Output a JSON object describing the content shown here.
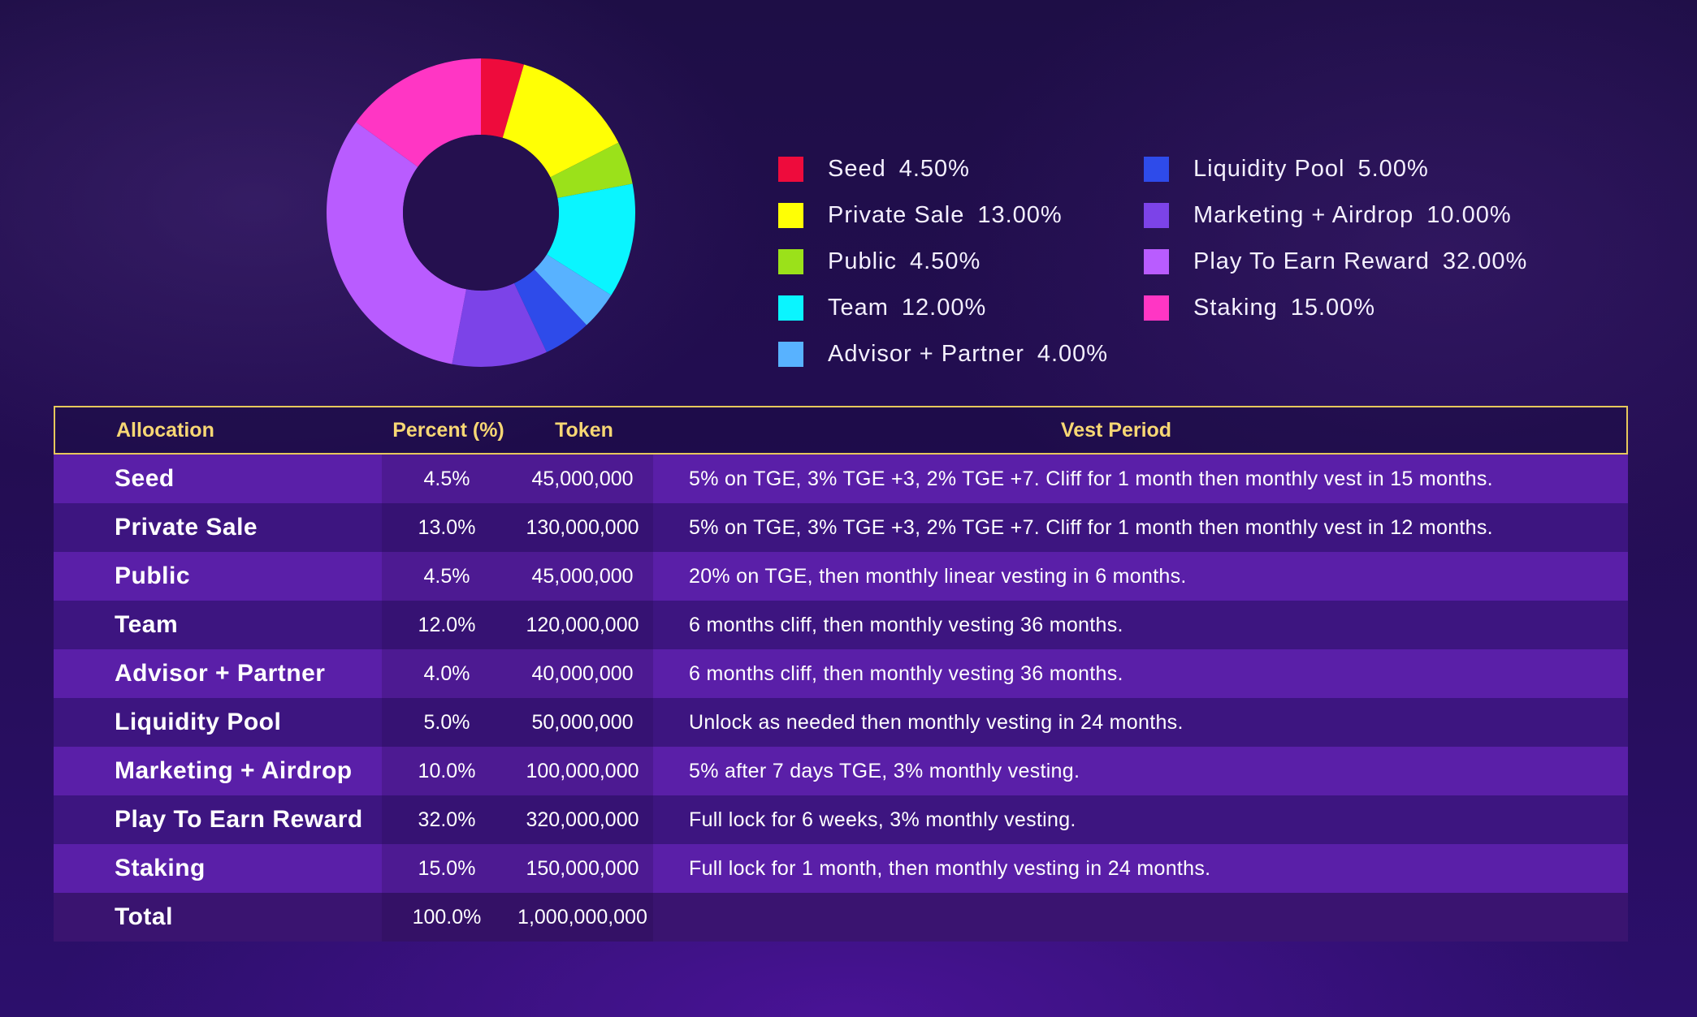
{
  "chart_data": {
    "type": "pie",
    "donut": true,
    "slices": [
      {
        "label": "Seed",
        "legend_pct": "4.50%",
        "value": 4.5,
        "color": "#ee0b3c"
      },
      {
        "label": "Private Sale",
        "legend_pct": "13.00%",
        "value": 13.0,
        "color": "#ffff05"
      },
      {
        "label": "Public",
        "legend_pct": "4.50%",
        "value": 4.5,
        "color": "#9be11a"
      },
      {
        "label": "Team",
        "legend_pct": "12.00%",
        "value": 12.0,
        "color": "#0af5ff"
      },
      {
        "label": "Advisor + Partner",
        "legend_pct": "4.00%",
        "value": 4.0,
        "color": "#58b2ff"
      },
      {
        "label": "Liquidity Pool",
        "legend_pct": "5.00%",
        "value": 5.0,
        "color": "#2e4bea"
      },
      {
        "label": "Marketing + Airdrop",
        "legend_pct": "10.00%",
        "value": 10.0,
        "color": "#7c43e8"
      },
      {
        "label": "Play To Earn Reward",
        "legend_pct": "32.00%",
        "value": 32.0,
        "color": "#b95cff"
      },
      {
        "label": "Staking",
        "legend_pct": "15.00%",
        "value": 15.0,
        "color": "#ff36c4"
      }
    ],
    "legend": {
      "col1": [
        0,
        1,
        2,
        3,
        4
      ],
      "col2": [
        5,
        6,
        7,
        8
      ]
    }
  },
  "table": {
    "headers": {
      "allocation": "Allocation",
      "percent": "Percent (%)",
      "token": "Token",
      "vest": "Vest Period"
    },
    "rows": [
      {
        "allocation": "Seed",
        "percent": "4.5%",
        "token": "45,000,000",
        "vest": "5% on TGE, 3% TGE +3, 2% TGE +7. Cliff for 1 month then monthly vest in 15 months."
      },
      {
        "allocation": "Private Sale",
        "percent": "13.0%",
        "token": "130,000,000",
        "vest": "5% on TGE, 3% TGE +3, 2% TGE +7. Cliff for 1 month then monthly vest in 12 months."
      },
      {
        "allocation": "Public",
        "percent": "4.5%",
        "token": "45,000,000",
        "vest": "20% on TGE, then monthly linear vesting in 6 months."
      },
      {
        "allocation": "Team",
        "percent": "12.0%",
        "token": "120,000,000",
        "vest": "6 months cliff, then monthly vesting 36 months."
      },
      {
        "allocation": "Advisor + Partner",
        "percent": "4.0%",
        "token": "40,000,000",
        "vest": "6 months cliff, then monthly vesting 36 months."
      },
      {
        "allocation": "Liquidity Pool",
        "percent": "5.0%",
        "token": "50,000,000",
        "vest": "Unlock as needed then monthly vesting  in 24 months."
      },
      {
        "allocation": "Marketing + Airdrop",
        "percent": "10.0%",
        "token": "100,000,000",
        "vest": "5% after 7 days TGE, 3% monthly vesting."
      },
      {
        "allocation": "Play To Earn Reward",
        "percent": "32.0%",
        "token": "320,000,000",
        "vest": "Full lock for 6 weeks, 3% monthly vesting."
      },
      {
        "allocation": "Staking",
        "percent": "15.0%",
        "token": "150,000,000",
        "vest": "Full lock for 1 month, then monthly vesting in 24 months."
      }
    ],
    "total": {
      "allocation": "Total",
      "percent": "100.0%",
      "token": "1,000,000,000",
      "vest": ""
    }
  }
}
